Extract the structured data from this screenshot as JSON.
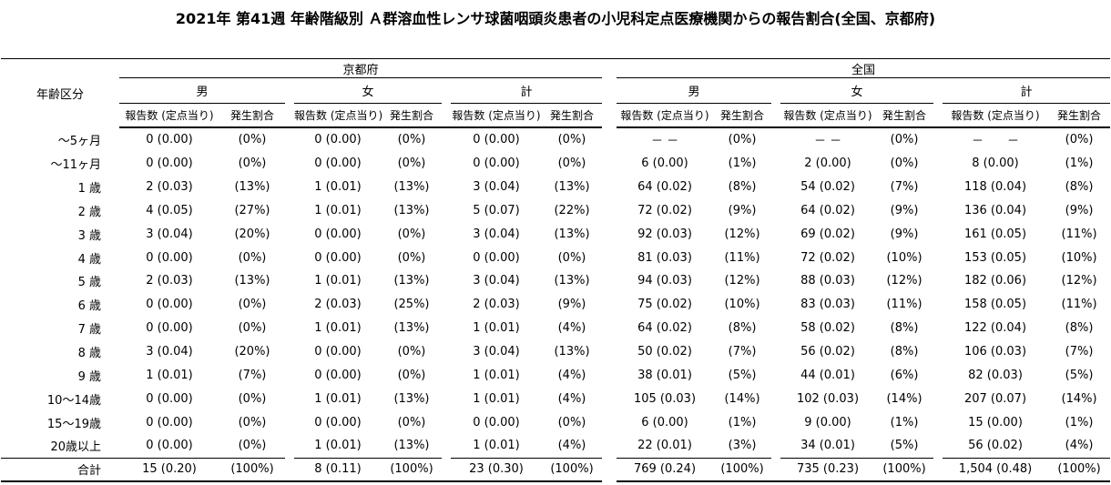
{
  "title": "2021年 第41週 年齢階級別 Ａ群溶血性レンサ球菌咽頭炎患者の小児科定点医療機関からの報告割合(全国、京都府)",
  "table": {
    "age_header": "年齢区分",
    "regions": [
      {
        "label": "京都府"
      },
      {
        "label": "全国"
      }
    ],
    "sex_groups": [
      "男",
      "女",
      "計",
      "男",
      "女",
      "計"
    ],
    "subheader": {
      "reports": "報告数 (定点当り)",
      "rate": "発生割合"
    },
    "rows": [
      {
        "age": "～5ヶ月",
        "cells": [
          "0 (0.00)",
          "(0%)",
          "0 (0.00)",
          "(0%)",
          "0 (0.00)",
          "(0%)",
          "－ －",
          "(0%)",
          "－ －",
          "(0%)",
          "－　　－",
          "(0%)"
        ]
      },
      {
        "age": "～11ヶ月",
        "cells": [
          "0 (0.00)",
          "(0%)",
          "0 (0.00)",
          "(0%)",
          "0 (0.00)",
          "(0%)",
          "6 (0.00)",
          "(1%)",
          "2 (0.00)",
          "(0%)",
          "8 (0.00)",
          "(1%)"
        ]
      },
      {
        "age": "1 歳",
        "cells": [
          "2 (0.03)",
          "(13%)",
          "1 (0.01)",
          "(13%)",
          "3 (0.04)",
          "(13%)",
          "64 (0.02)",
          "(8%)",
          "54 (0.02)",
          "(7%)",
          "118 (0.04)",
          "(8%)"
        ]
      },
      {
        "age": "2 歳",
        "cells": [
          "4 (0.05)",
          "(27%)",
          "1 (0.01)",
          "(13%)",
          "5 (0.07)",
          "(22%)",
          "72 (0.02)",
          "(9%)",
          "64 (0.02)",
          "(9%)",
          "136 (0.04)",
          "(9%)"
        ]
      },
      {
        "age": "3 歳",
        "cells": [
          "3 (0.04)",
          "(20%)",
          "0 (0.00)",
          "(0%)",
          "3 (0.04)",
          "(13%)",
          "92 (0.03)",
          "(12%)",
          "69 (0.02)",
          "(9%)",
          "161 (0.05)",
          "(11%)"
        ]
      },
      {
        "age": "4 歳",
        "cells": [
          "0 (0.00)",
          "(0%)",
          "0 (0.00)",
          "(0%)",
          "0 (0.00)",
          "(0%)",
          "81 (0.03)",
          "(11%)",
          "72 (0.02)",
          "(10%)",
          "153 (0.05)",
          "(10%)"
        ]
      },
      {
        "age": "5 歳",
        "cells": [
          "2 (0.03)",
          "(13%)",
          "1 (0.01)",
          "(13%)",
          "3 (0.04)",
          "(13%)",
          "94 (0.03)",
          "(12%)",
          "88 (0.03)",
          "(12%)",
          "182 (0.06)",
          "(12%)"
        ]
      },
      {
        "age": "6 歳",
        "cells": [
          "0 (0.00)",
          "(0%)",
          "2 (0.03)",
          "(25%)",
          "2 (0.03)",
          "(9%)",
          "75 (0.02)",
          "(10%)",
          "83 (0.03)",
          "(11%)",
          "158 (0.05)",
          "(11%)"
        ]
      },
      {
        "age": "7 歳",
        "cells": [
          "0 (0.00)",
          "(0%)",
          "1 (0.01)",
          "(13%)",
          "1 (0.01)",
          "(4%)",
          "64 (0.02)",
          "(8%)",
          "58 (0.02)",
          "(8%)",
          "122 (0.04)",
          "(8%)"
        ]
      },
      {
        "age": "8 歳",
        "cells": [
          "3 (0.04)",
          "(20%)",
          "0 (0.00)",
          "(0%)",
          "3 (0.04)",
          "(13%)",
          "50 (0.02)",
          "(7%)",
          "56 (0.02)",
          "(8%)",
          "106 (0.03)",
          "(7%)"
        ]
      },
      {
        "age": "9 歳",
        "cells": [
          "1 (0.01)",
          "(7%)",
          "0 (0.00)",
          "(0%)",
          "1 (0.01)",
          "(4%)",
          "38 (0.01)",
          "(5%)",
          "44 (0.01)",
          "(6%)",
          "82 (0.03)",
          "(5%)"
        ]
      },
      {
        "age": "10～14歳",
        "cells": [
          "0 (0.00)",
          "(0%)",
          "1 (0.01)",
          "(13%)",
          "1 (0.01)",
          "(4%)",
          "105 (0.03)",
          "(14%)",
          "102 (0.03)",
          "(14%)",
          "207 (0.07)",
          "(14%)"
        ]
      },
      {
        "age": "15～19歳",
        "cells": [
          "0 (0.00)",
          "(0%)",
          "0 (0.00)",
          "(0%)",
          "0 (0.00)",
          "(0%)",
          "6 (0.00)",
          "(1%)",
          "9 (0.00)",
          "(1%)",
          "15 (0.00)",
          "(1%)"
        ]
      },
      {
        "age": "20歳以上",
        "cells": [
          "0 (0.00)",
          "(0%)",
          "1 (0.01)",
          "(13%)",
          "1 (0.01)",
          "(4%)",
          "22 (0.01)",
          "(3%)",
          "34 (0.01)",
          "(5%)",
          "56 (0.02)",
          "(4%)"
        ]
      }
    ],
    "total": {
      "age": "合計",
      "cells": [
        "15 (0.20)",
        "(100%)",
        "8 (0.11)",
        "(100%)",
        "23 (0.30)",
        "(100%)",
        "769 (0.24)",
        "(100%)",
        "735 (0.23)",
        "(100%)",
        "1,504 (0.48)",
        "(100%)"
      ]
    }
  }
}
